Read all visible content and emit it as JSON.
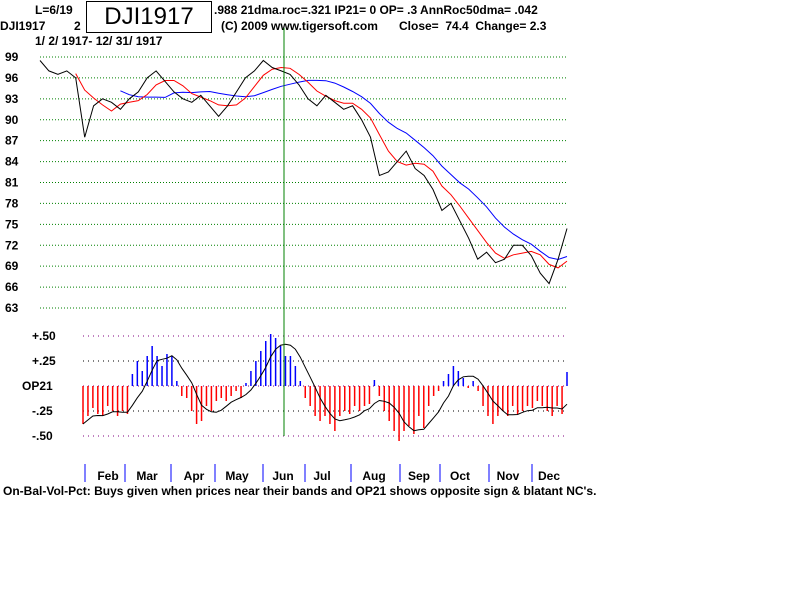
{
  "header": {
    "last_date": "L=6/19",
    "hidden_char": "2",
    "stats_line": ".988 21dma.roc=.321 IP21= 0 OP= .3 AnnRoc50dma= .042",
    "symbol": "DJI1917",
    "title_box": "DJI1917",
    "copyright": "(C) 2009 www.tigersoft.com",
    "close_label": "Close=  74.4  Change= 2.3",
    "date_range": "1/ 2/ 1917- 12/ 31/ 1917"
  },
  "footer": "On-Bal-Vol-Pct: Buys given when prices near their bands and OP21 shows opposite sign & blatant NC's.",
  "colors": {
    "price": "#000000",
    "ma21": "#ff0000",
    "ma50": "#0000ff",
    "pos": "#0000ff",
    "neg": "#ff0000",
    "marker": "#008000"
  },
  "chart_data": [
    {
      "type": "line",
      "title": "DJI1917",
      "ylim": [
        63,
        99
      ],
      "yticks": [
        "99",
        "96",
        "93",
        "90",
        "87",
        "84",
        "81",
        "78",
        "75",
        "72",
        "69",
        "66",
        "63"
      ],
      "series": [
        {
          "name": "Close",
          "values": [
            98.5,
            97,
            96.5,
            97,
            96,
            87.5,
            92,
            93,
            92.5,
            91.5,
            93,
            94,
            96,
            97,
            95.5,
            94,
            93,
            92.5,
            93.5,
            92,
            90.5,
            92,
            94,
            96,
            97,
            98.5,
            97.5,
            97,
            96.5,
            95,
            93,
            92,
            93.5,
            92.5,
            91.5,
            92,
            90,
            87.5,
            82,
            82.5,
            84,
            85.5,
            83,
            82,
            80,
            77,
            78,
            75.5,
            73,
            70,
            71,
            69.5,
            70,
            72,
            72,
            70.5,
            68,
            66.5,
            70,
            74.4
          ]
        },
        {
          "name": "21-dma",
          "derived": "moving average of Close"
        },
        {
          "name": "50-dma",
          "derived": "moving average of Close"
        }
      ],
      "marker_month": "Jun",
      "grid": true
    },
    {
      "type": "bar",
      "title": "OP21",
      "ylim": [
        -0.55,
        0.55
      ],
      "yticks": [
        "+.50",
        "+.25",
        "OP21",
        "-.25",
        "-.50"
      ],
      "values": [
        -0.38,
        -0.3,
        -0.22,
        -0.28,
        -0.3,
        -0.2,
        -0.25,
        -0.3,
        -0.25,
        -0.28,
        0.12,
        0.25,
        0.15,
        0.3,
        0.4,
        0.3,
        0.2,
        0.32,
        0.3,
        0.05,
        -0.1,
        -0.12,
        -0.25,
        -0.38,
        -0.35,
        -0.2,
        -0.25,
        -0.15,
        -0.12,
        -0.15,
        -0.1,
        -0.05,
        -0.12,
        0.03,
        0.15,
        0.25,
        0.35,
        0.45,
        0.52,
        0.48,
        0.4,
        0.3,
        0.3,
        0.2,
        0.05,
        -0.12,
        -0.2,
        -0.3,
        -0.35,
        -0.3,
        -0.38,
        -0.45,
        -0.3,
        -0.25,
        -0.28,
        -0.2,
        -0.25,
        -0.2,
        -0.18,
        0.06,
        -0.1,
        -0.25,
        -0.35,
        -0.45,
        -0.55,
        -0.45,
        -0.4,
        -0.48,
        -0.3,
        -0.42,
        -0.2,
        -0.1,
        -0.05,
        0.05,
        0.12,
        0.2,
        0.15,
        0.08,
        -0.02,
        0.05,
        -0.05,
        -0.2,
        -0.3,
        -0.38,
        -0.3,
        -0.25,
        -0.3,
        -0.2,
        -0.28,
        -0.25,
        -0.2,
        -0.22,
        -0.15,
        -0.2,
        -0.25,
        -0.3,
        -0.2,
        -0.28,
        0.14
      ],
      "months": [
        "Feb",
        "Mar",
        "Apr",
        "May",
        "Jun",
        "Jul",
        "Aug",
        "Sep",
        "Oct",
        "Nov",
        "Dec"
      ]
    }
  ]
}
